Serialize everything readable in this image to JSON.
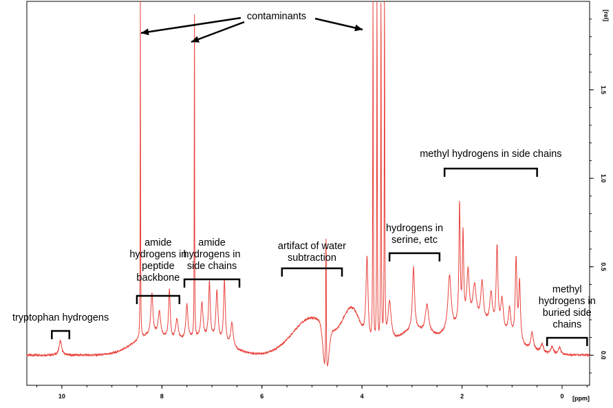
{
  "chart_data": {
    "type": "line",
    "color": "#e8403a",
    "xlabel": "[ppm]",
    "ylabel": "[rel]",
    "xlim": [
      10.7,
      -0.55
    ],
    "ylim": [
      -0.17,
      2.0
    ],
    "x_reversed": true,
    "x_ticks": [
      10,
      8,
      6,
      4,
      2,
      0
    ],
    "x_tick_labels": [
      "10",
      "8",
      "6",
      "4",
      "2",
      "0"
    ],
    "y_ticks": [
      0.0,
      0.5,
      1.0,
      1.5
    ],
    "y_tick_labels": [
      "0.0",
      "0.5",
      "1.0",
      "1.5"
    ],
    "grid": false,
    "baseline": 0.0,
    "broad_humps": [
      {
        "center": 5.0,
        "height": 0.21,
        "width": 0.38
      },
      {
        "center": 4.2,
        "height": 0.24,
        "width": 0.18
      },
      {
        "center": 8.25,
        "height": 0.1,
        "width": 0.35
      },
      {
        "center": 7.2,
        "height": 0.09,
        "width": 0.45
      },
      {
        "center": 3.0,
        "height": 0.12,
        "width": 0.35
      },
      {
        "center": 1.7,
        "height": 0.18,
        "width": 0.55
      }
    ],
    "peaks": [
      {
        "ppm": 10.03,
        "height": 0.08,
        "width": 0.03
      },
      {
        "ppm": 8.43,
        "height": 2.1,
        "width": 0.004
      },
      {
        "ppm": 8.2,
        "height": 0.24,
        "width": 0.025
      },
      {
        "ppm": 8.05,
        "height": 0.14,
        "width": 0.03
      },
      {
        "ppm": 7.85,
        "height": 0.28,
        "width": 0.02
      },
      {
        "ppm": 7.7,
        "height": 0.12,
        "width": 0.03
      },
      {
        "ppm": 7.5,
        "height": 0.2,
        "width": 0.025
      },
      {
        "ppm": 7.35,
        "height": 2.1,
        "width": 0.004
      },
      {
        "ppm": 7.2,
        "height": 0.2,
        "width": 0.025
      },
      {
        "ppm": 7.05,
        "height": 0.32,
        "width": 0.02
      },
      {
        "ppm": 6.9,
        "height": 0.28,
        "width": 0.025
      },
      {
        "ppm": 6.75,
        "height": 0.36,
        "width": 0.02
      },
      {
        "ppm": 6.6,
        "height": 0.14,
        "width": 0.03
      },
      {
        "ppm": 4.72,
        "height": 0.5,
        "width": 0.01
      },
      {
        "ppm": 3.9,
        "height": 0.48,
        "width": 0.025
      },
      {
        "ppm": 3.78,
        "height": 2.1,
        "width": 0.006
      },
      {
        "ppm": 3.7,
        "height": 2.1,
        "width": 0.006
      },
      {
        "ppm": 3.62,
        "height": 2.1,
        "width": 0.006
      },
      {
        "ppm": 3.55,
        "height": 2.1,
        "width": 0.006
      },
      {
        "ppm": 3.45,
        "height": 0.24,
        "width": 0.04
      },
      {
        "ppm": 2.97,
        "height": 0.36,
        "width": 0.025
      },
      {
        "ppm": 2.7,
        "height": 0.16,
        "width": 0.04
      },
      {
        "ppm": 2.25,
        "height": 0.32,
        "width": 0.04
      },
      {
        "ppm": 2.05,
        "height": 0.68,
        "width": 0.015
      },
      {
        "ppm": 1.98,
        "height": 0.5,
        "width": 0.015
      },
      {
        "ppm": 1.88,
        "height": 0.28,
        "width": 0.03
      },
      {
        "ppm": 1.75,
        "height": 0.2,
        "width": 0.04
      },
      {
        "ppm": 1.6,
        "height": 0.22,
        "width": 0.03
      },
      {
        "ppm": 1.42,
        "height": 0.18,
        "width": 0.03
      },
      {
        "ppm": 1.3,
        "height": 0.46,
        "width": 0.02
      },
      {
        "ppm": 1.2,
        "height": 0.18,
        "width": 0.03
      },
      {
        "ppm": 1.05,
        "height": 0.16,
        "width": 0.03
      },
      {
        "ppm": 0.92,
        "height": 0.46,
        "width": 0.02
      },
      {
        "ppm": 0.85,
        "height": 0.34,
        "width": 0.02
      },
      {
        "ppm": 0.6,
        "height": 0.1,
        "width": 0.03
      },
      {
        "ppm": 0.4,
        "height": 0.05,
        "width": 0.03
      },
      {
        "ppm": 0.2,
        "height": 0.04,
        "width": 0.03
      },
      {
        "ppm": 0.05,
        "height": 0.04,
        "width": 0.03
      }
    ],
    "annotations": [
      {
        "text": "contaminants",
        "arrows_to_ppm": [
          8.43,
          7.35,
          3.78
        ]
      },
      {
        "text": "tryptophan hydrogens",
        "range": [
          10.2,
          9.85
        ]
      },
      {
        "text": "amide hydrogens in peptide backbone",
        "lines": [
          "amide",
          "hydrogens in",
          "peptide",
          "backbone"
        ],
        "range": [
          8.5,
          7.65
        ]
      },
      {
        "text": "amide hydrogens in side chains",
        "lines": [
          "amide",
          "hydrogens in",
          "side chains"
        ],
        "range": [
          7.55,
          6.45
        ]
      },
      {
        "text": "artifact of water subtraction",
        "lines": [
          "artifact of water",
          "subtraction"
        ],
        "range": [
          5.6,
          4.4
        ]
      },
      {
        "text": "hydrogens in serine, etc",
        "lines": [
          "hydrogens in",
          "serine, etc"
        ],
        "range": [
          3.45,
          2.45
        ]
      },
      {
        "text": "methyl hydrogens in side chains",
        "range": [
          2.35,
          0.5
        ]
      },
      {
        "text": "methyl hydrogens in buried side chains",
        "lines": [
          "methyl",
          "hydrogens in",
          "buried side",
          "chains"
        ],
        "range": [
          0.3,
          -0.5
        ]
      }
    ]
  }
}
